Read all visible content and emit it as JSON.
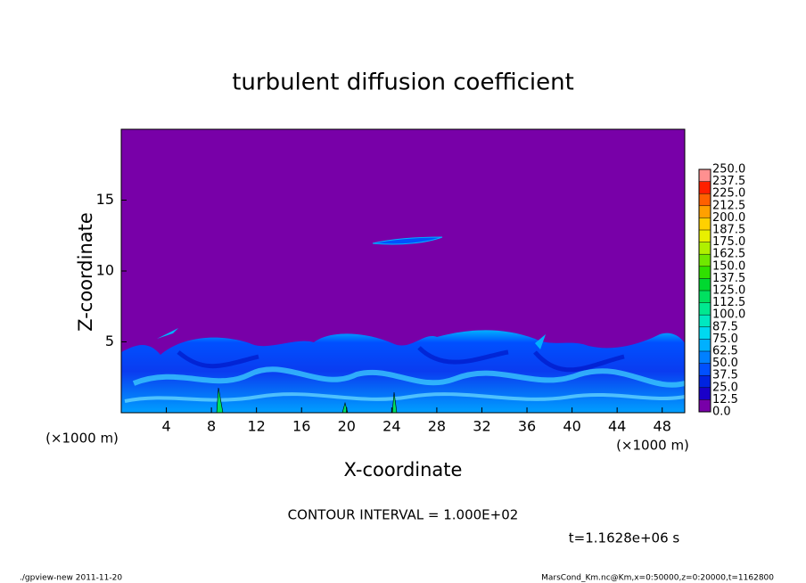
{
  "chart_data": {
    "type": "contour",
    "title": "turbulent diffusion coefficient",
    "x_label": "X-coordinate",
    "y_label": "Z-coordinate",
    "x_unit_label": "(×1000 m)",
    "y_unit_label": "(×1000 m)",
    "xlim": [
      0,
      50
    ],
    "ylim": [
      0,
      20
    ],
    "xticks": [
      4,
      8,
      12,
      16,
      20,
      24,
      28,
      32,
      36,
      40,
      44,
      48
    ],
    "yticks": [
      5,
      10,
      15
    ],
    "colorbar": {
      "levels": [
        {
          "value": 0,
          "label": "0.0"
        },
        {
          "value": 12.5,
          "label": "12.5"
        },
        {
          "value": 25,
          "label": "25.0"
        },
        {
          "value": 37.5,
          "label": "37.5"
        },
        {
          "value": 50,
          "label": "50.0"
        },
        {
          "value": 62.5,
          "label": "62.5"
        },
        {
          "value": 75,
          "label": "75.0"
        },
        {
          "value": 87.5,
          "label": "87.5"
        },
        {
          "value": 100,
          "label": "100.0"
        },
        {
          "value": 112.5,
          "label": "112.5"
        },
        {
          "value": 125,
          "label": "125.0"
        },
        {
          "value": 137.5,
          "label": "137.5"
        },
        {
          "value": 150,
          "label": "150.0"
        },
        {
          "value": 162.5,
          "label": "162.5"
        },
        {
          "value": 175,
          "label": "175.0"
        },
        {
          "value": 187.5,
          "label": "187.5"
        },
        {
          "value": 200,
          "label": "200.0"
        },
        {
          "value": 212.5,
          "label": "212.5"
        },
        {
          "value": 225,
          "label": "225.0"
        },
        {
          "value": 237.5,
          "label": "237.5"
        },
        {
          "value": 250,
          "label": "250.0"
        }
      ],
      "colors": [
        "#7800a8",
        "#1a00c8",
        "#0024e0",
        "#0050ff",
        "#0080ff",
        "#00b0ff",
        "#00d8f0",
        "#00e8c0",
        "#00e890",
        "#00e060",
        "#00d830",
        "#30e000",
        "#70e800",
        "#b0f000",
        "#e8f000",
        "#ffd000",
        "#ffa000",
        "#ff6000",
        "#ff2000",
        "#ff9090"
      ]
    },
    "contour_interval": "CONTOUR INTERVAL = 1.000E+02",
    "time_label": "t=1.1628e+06 s",
    "footer_left": "./gpview-new  2011-11-20",
    "footer_right": "MarsCond_Km.nc@Km,x=0:50000,z=0:20000,t=1162800"
  }
}
